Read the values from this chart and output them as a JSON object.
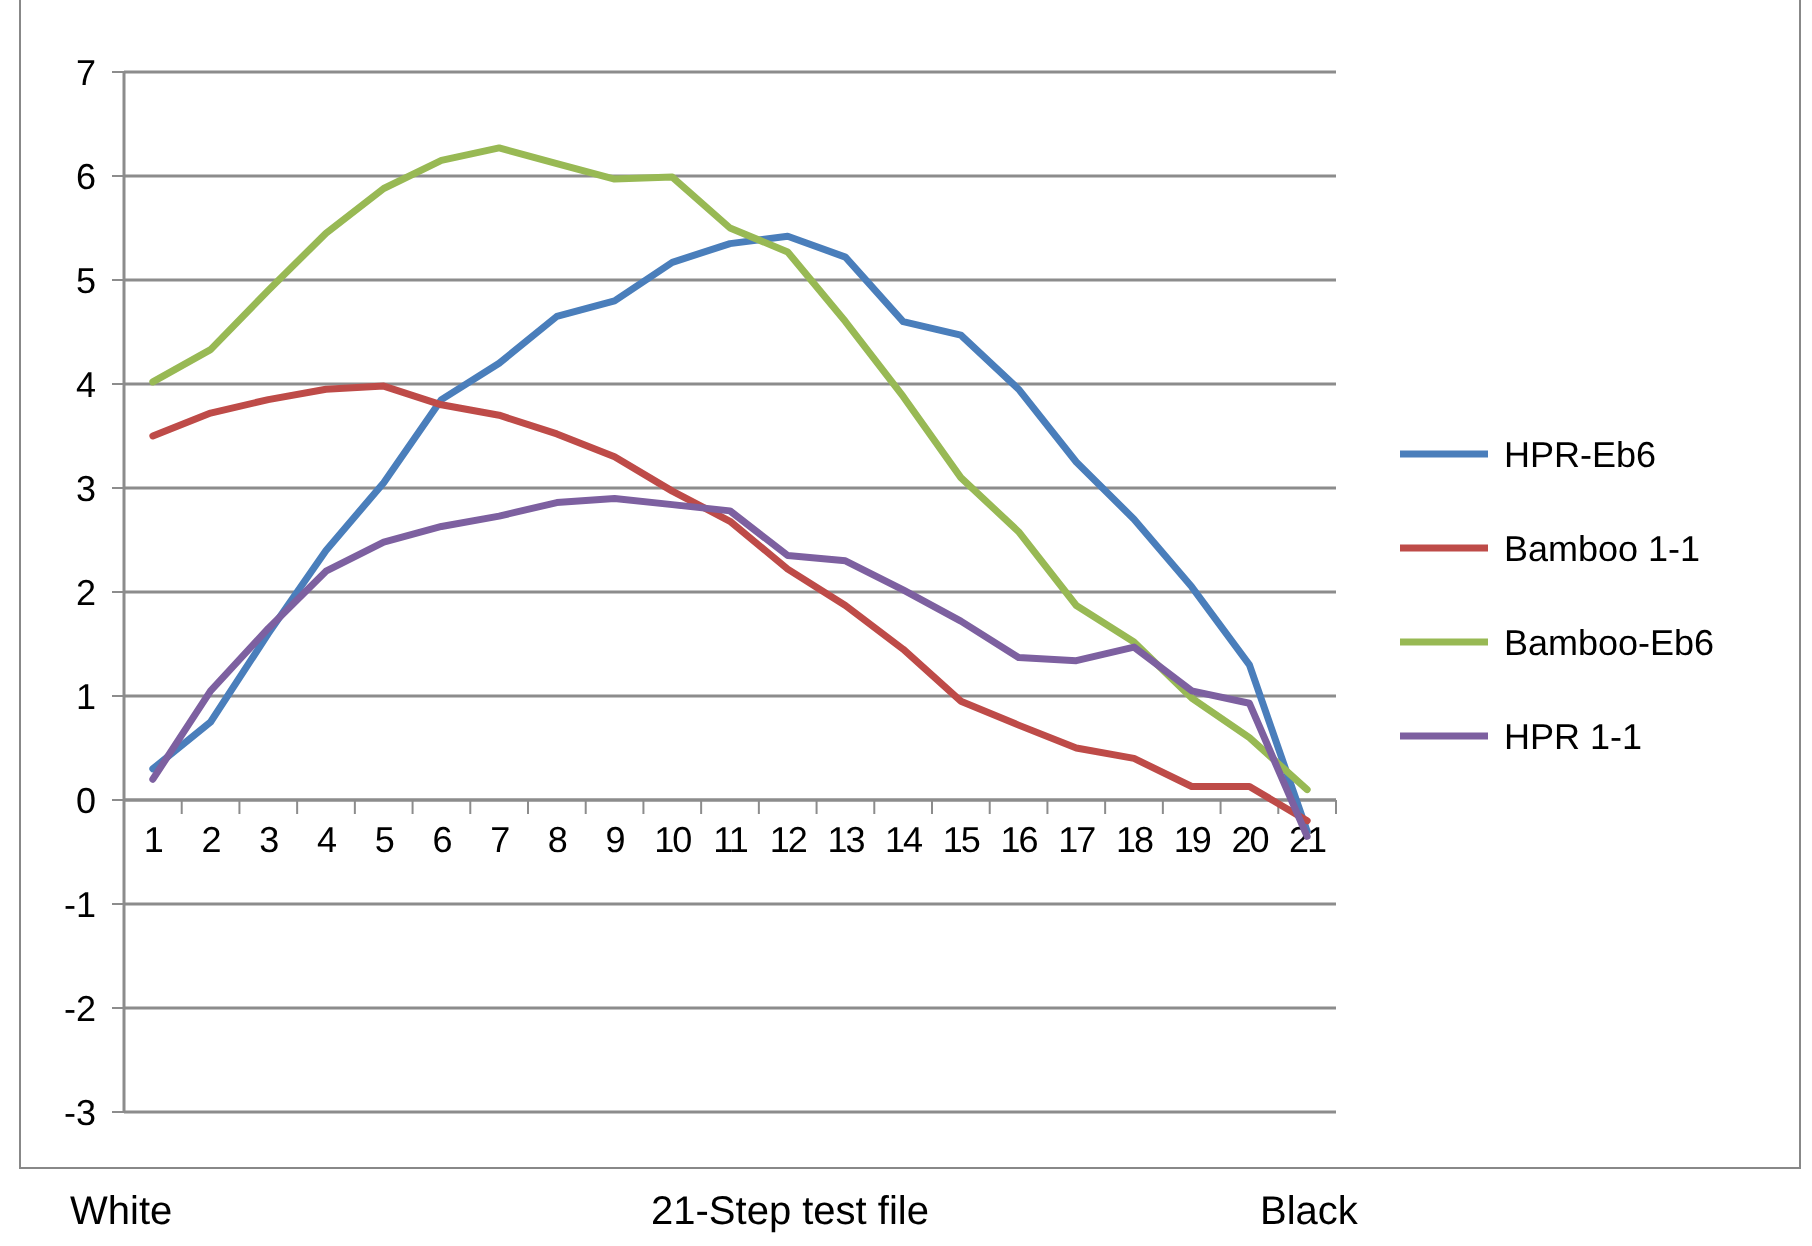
{
  "chart_data": {
    "type": "line",
    "xlabel": "21-Step test file",
    "annotations": [
      "White",
      "Black"
    ],
    "categories": [
      "1",
      "2",
      "3",
      "4",
      "5",
      "6",
      "7",
      "8",
      "9",
      "10",
      "11",
      "12",
      "13",
      "14",
      "15",
      "16",
      "17",
      "18",
      "19",
      "20",
      "21"
    ],
    "series": [
      {
        "name": "HPR-Eb6",
        "color": "#4a7ebb",
        "values": [
          0.3,
          0.75,
          1.6,
          2.4,
          3.05,
          3.85,
          4.2,
          4.65,
          4.8,
          5.17,
          5.35,
          5.42,
          5.22,
          4.6,
          4.47,
          3.95,
          3.25,
          2.7,
          2.05,
          1.3,
          -0.3
        ]
      },
      {
        "name": "Bamboo 1-1",
        "color": "#be4b48",
        "values": [
          3.5,
          3.72,
          3.85,
          3.95,
          3.98,
          3.8,
          3.7,
          3.52,
          3.3,
          2.97,
          2.68,
          2.22,
          1.87,
          1.45,
          0.95,
          0.72,
          0.5,
          0.4,
          0.13,
          0.13,
          -0.2
        ]
      },
      {
        "name": "Bamboo-Eb6",
        "color": "#98b954",
        "values": [
          4.02,
          4.33,
          4.9,
          5.45,
          5.88,
          6.15,
          6.27,
          6.12,
          5.97,
          5.99,
          5.5,
          5.27,
          4.6,
          3.88,
          3.1,
          2.58,
          1.87,
          1.52,
          0.98,
          0.6,
          0.1
        ]
      },
      {
        "name": "HPR 1-1",
        "color": "#7d60a0",
        "values": [
          0.2,
          1.05,
          1.65,
          2.2,
          2.48,
          2.63,
          2.73,
          2.86,
          2.9,
          2.84,
          2.78,
          2.35,
          2.3,
          2.02,
          1.72,
          1.37,
          1.34,
          1.47,
          1.05,
          0.93,
          -0.35
        ]
      }
    ],
    "ylim": [
      -3,
      7
    ],
    "yticks": [
      -3,
      -2,
      -1,
      0,
      1,
      2,
      3,
      4,
      5,
      6,
      7
    ],
    "grid": "y",
    "legend": "right",
    "marker": "none",
    "line_style": "solid"
  }
}
